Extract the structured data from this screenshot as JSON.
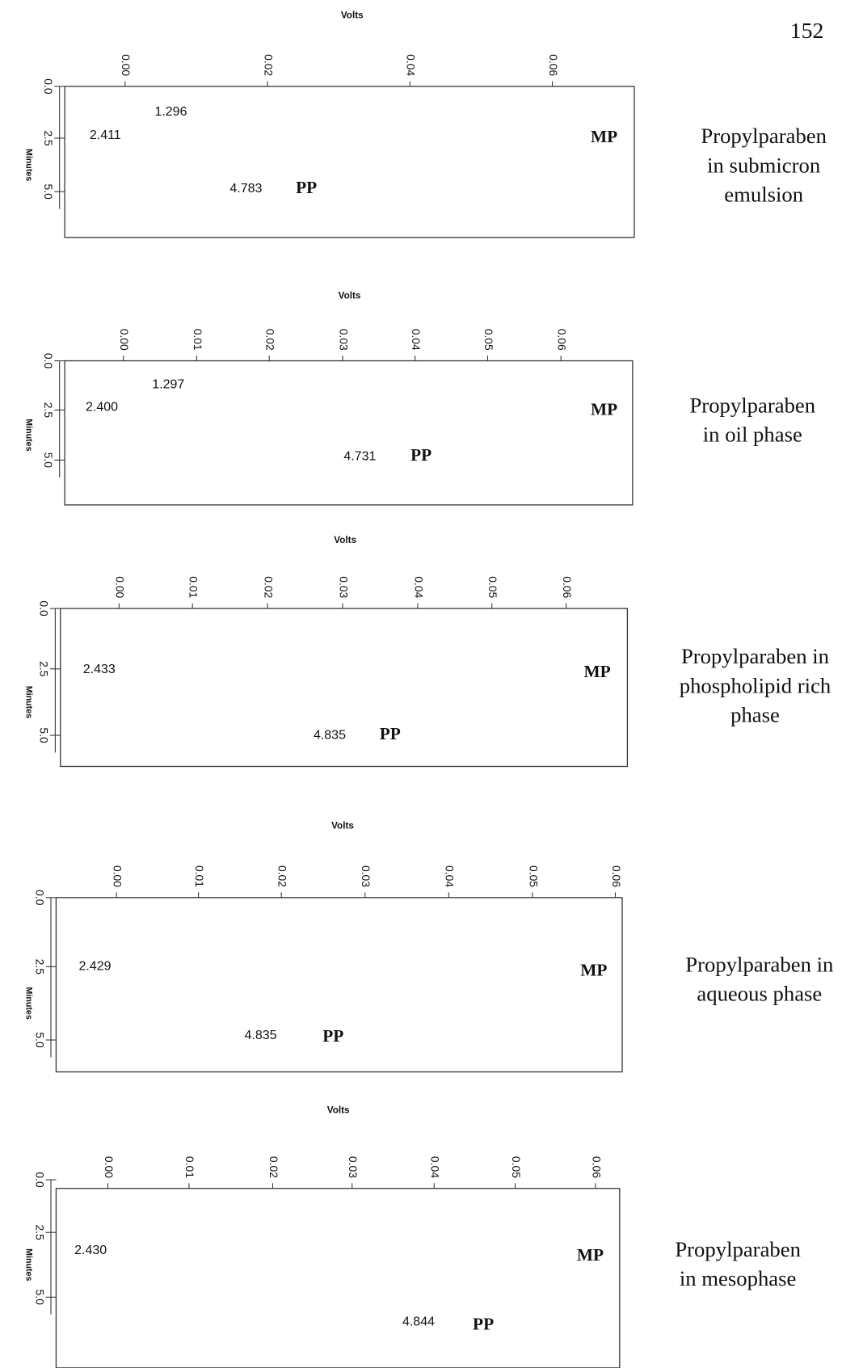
{
  "page_number": "152",
  "panels": [
    {
      "x_label": "Volts",
      "y_label": "Minutes",
      "x_ticks": [
        "0.00",
        "0.02",
        "0.04",
        "0.06"
      ],
      "y_ticks": [
        "0.0",
        "2.5",
        "5.0"
      ],
      "peaks": [
        "1.296",
        "2.411",
        "4.783"
      ],
      "markers": [
        "PP",
        "MP"
      ],
      "caption": [
        "Propylparaben",
        "in submicron",
        "emulsion"
      ]
    },
    {
      "x_label": "Volts",
      "y_label": "Minutes",
      "x_ticks": [
        "0.00",
        "0.01",
        "0.02",
        "0.03",
        "0.04",
        "0.05",
        "0.06"
      ],
      "y_ticks": [
        "0.0",
        "2.5",
        "5.0"
      ],
      "peaks": [
        "1.297",
        "2.400",
        "4.731"
      ],
      "markers": [
        "PP",
        "MP"
      ],
      "caption": [
        "Propylparaben",
        "in oil phase"
      ]
    },
    {
      "x_label": "Volts",
      "y_label": "Minutes",
      "x_ticks": [
        "0.00",
        "0.01",
        "0.02",
        "0.03",
        "0.04",
        "0.05",
        "0.06"
      ],
      "y_ticks": [
        "0.0",
        "2.5",
        "5.0"
      ],
      "peaks": [
        "2.433",
        "4.835"
      ],
      "markers": [
        "PP",
        "MP"
      ],
      "caption": [
        "Propylparaben in",
        "phospholipid rich",
        "phase"
      ]
    },
    {
      "x_label": "Volts",
      "y_label": "Minutes",
      "x_ticks": [
        "0.00",
        "0.01",
        "0.02",
        "0.03",
        "0.04",
        "0.05",
        "0.06"
      ],
      "y_ticks": [
        "0.0",
        "2.5",
        "5.0"
      ],
      "peaks": [
        "2.429",
        "4.835"
      ],
      "markers": [
        "PP",
        "MP"
      ],
      "caption": [
        "Propylparaben in",
        "aqueous phase"
      ]
    },
    {
      "x_label": "Volts",
      "y_label": "Minutes",
      "x_ticks": [
        "0.00",
        "0.01",
        "0.02",
        "0.03",
        "0.04",
        "0.05",
        "0.06"
      ],
      "y_ticks": [
        "0.0",
        "2.5",
        "5.0"
      ],
      "peaks": [
        "2.430",
        "4.844"
      ],
      "markers": [
        "PP",
        "MP"
      ],
      "caption": [
        "Propylparaben",
        "in mesophase"
      ]
    }
  ]
}
